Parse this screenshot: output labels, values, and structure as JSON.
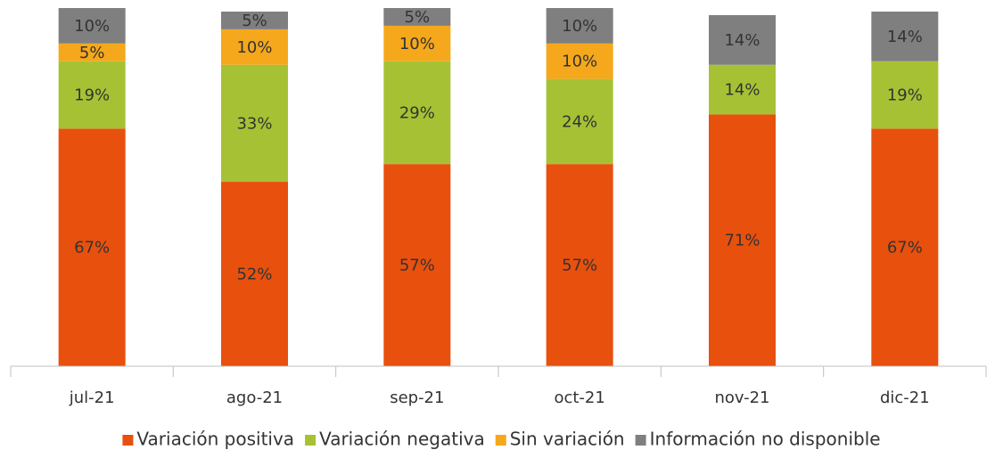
{
  "chart_data": {
    "type": "stacked_bar",
    "categories": [
      "jul-21",
      "ago-21",
      "sep-21",
      "oct-21",
      "nov-21",
      "dic-21"
    ],
    "series": [
      {
        "name": "Variación positiva",
        "color": "#e8500e",
        "values": [
          67,
          52,
          57,
          57,
          71,
          67
        ],
        "value_labels": [
          "67%",
          "52%",
          "57%",
          "57%",
          "71%",
          "67%"
        ]
      },
      {
        "name": "Variación negativa",
        "color": "#a6c234",
        "values": [
          19,
          33,
          29,
          24,
          14,
          19
        ],
        "value_labels": [
          "19%",
          "33%",
          "29%",
          "24%",
          "14%",
          "19%"
        ]
      },
      {
        "name": "Sin variación",
        "color": "#f5a81b",
        "values": [
          5,
          10,
          10,
          10,
          null,
          null
        ],
        "value_labels": [
          "5%",
          "10%",
          "10%",
          "10%",
          null,
          null
        ]
      },
      {
        "name": "Información no disponible",
        "color": "#7f7f7f",
        "values": [
          10,
          5,
          5,
          10,
          14,
          14
        ],
        "value_labels": [
          "10%",
          "5%",
          "5%",
          "10%",
          "14%",
          "14%"
        ]
      }
    ],
    "ylim": [
      0,
      100
    ],
    "legend": "bottom"
  }
}
